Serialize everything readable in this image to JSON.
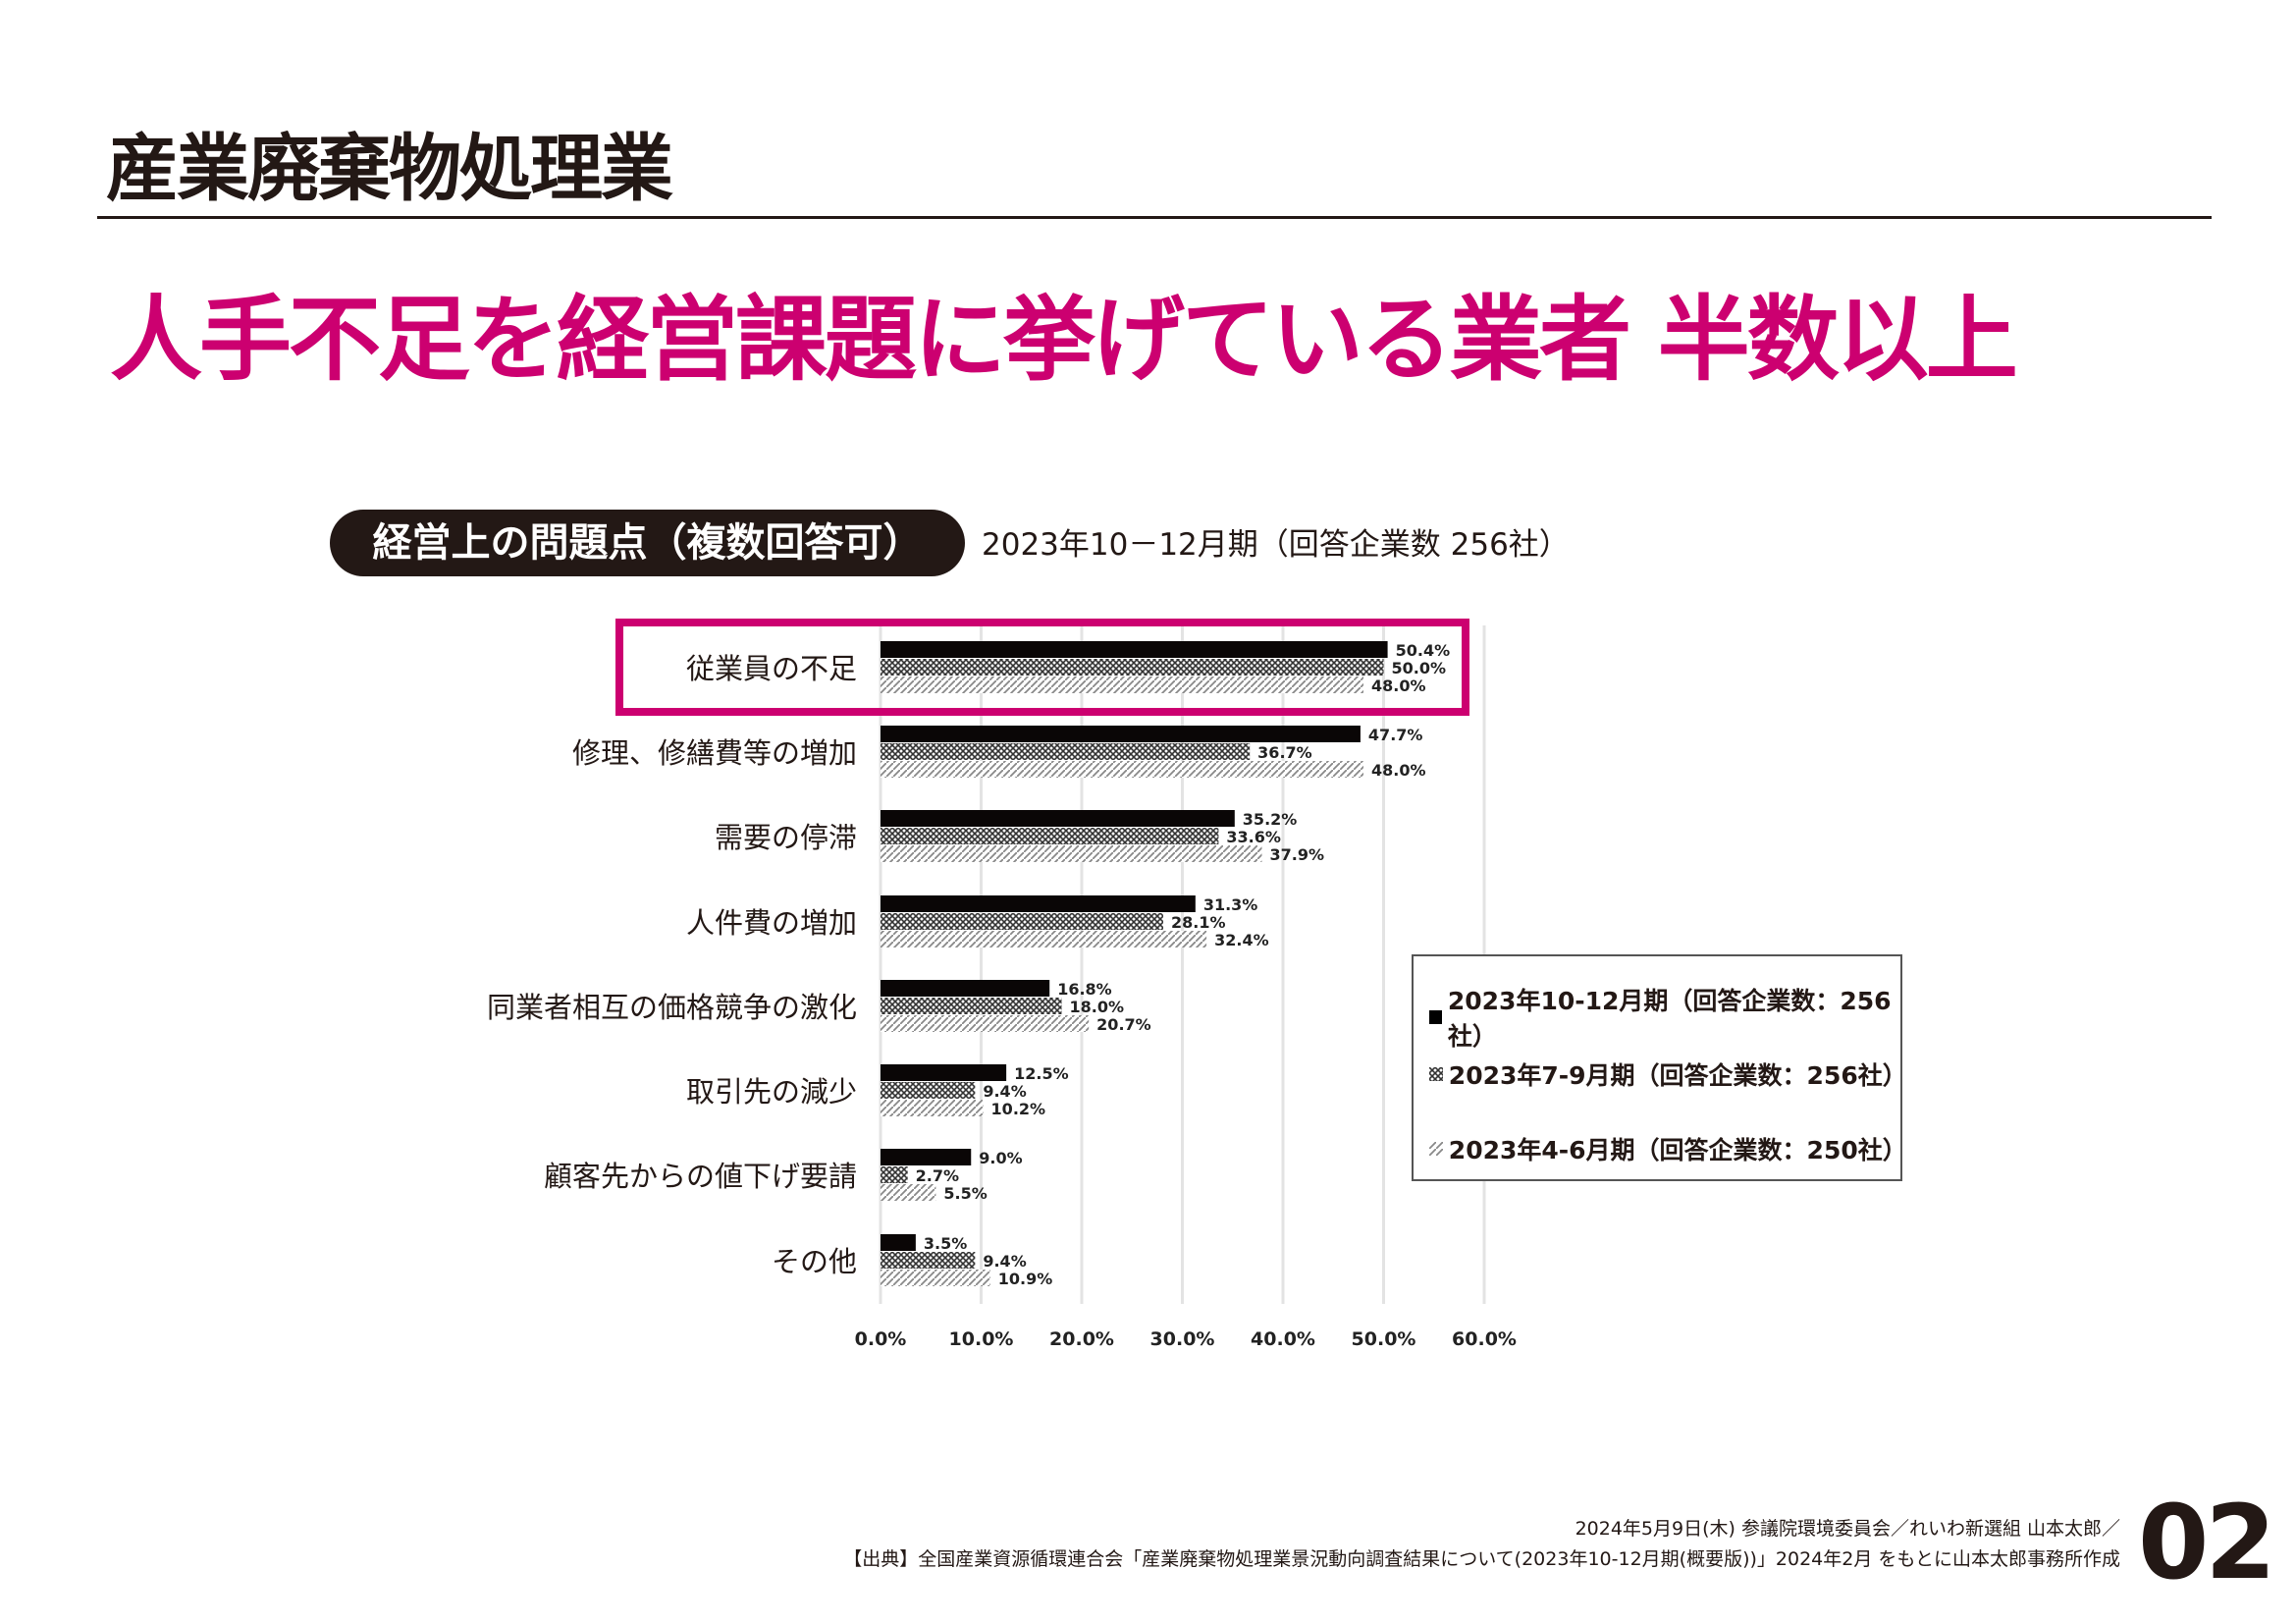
{
  "slide": {
    "title": "産業廃棄物処理業",
    "headline": "人手不足を経営課題に挙げている業者 半数以上",
    "accent_color": "#cc0070",
    "pill_label": "経営上の問題点（複数回答可）",
    "subtitle": "2023年10－12月期（回答企業数 256社）",
    "footer_line1": "2024年5月9日(木) 参議院環境委員会／れいわ新選組 山本太郎／",
    "footer_line2": "【出典】全国産業資源循環連合会「産業廃棄物処理業景況動向調査結果について(2023年10-12月期(概要版))」2024年2月 をもとに山本太郎事務所作成",
    "page_number": "02"
  },
  "chart_data": {
    "type": "bar",
    "orientation": "horizontal",
    "title": "経営上の問題点（複数回答可）",
    "categories": [
      "従業員の不足",
      "修理、修繕費等の増加",
      "需要の停滞",
      "人件費の増加",
      "同業者相互の価格競争の激化",
      "取引先の減少",
      "顧客先からの値下げ要請",
      "その他"
    ],
    "highlighted_category": "従業員の不足",
    "series": [
      {
        "name": "2023年10-12月期（回答企業数：256社）",
        "pattern": "solid",
        "values": [
          50.4,
          47.7,
          35.2,
          31.3,
          16.8,
          12.5,
          9.0,
          3.5
        ]
      },
      {
        "name": "2023年7-9月期（回答企業数：256社）",
        "pattern": "crosshatch",
        "values": [
          50.0,
          36.7,
          33.6,
          28.1,
          18.0,
          9.4,
          2.7,
          9.4
        ]
      },
      {
        "name": "2023年4-6月期（回答企業数：250社）",
        "pattern": "diagonal",
        "values": [
          48.0,
          48.0,
          37.9,
          32.4,
          20.7,
          10.2,
          5.5,
          10.9
        ]
      }
    ],
    "xlim": [
      0,
      60
    ],
    "xticks": [
      "0.0%",
      "10.0%",
      "20.0%",
      "30.0%",
      "40.0%",
      "50.0%",
      "60.0%"
    ],
    "grid": true,
    "legend_position": "right"
  }
}
